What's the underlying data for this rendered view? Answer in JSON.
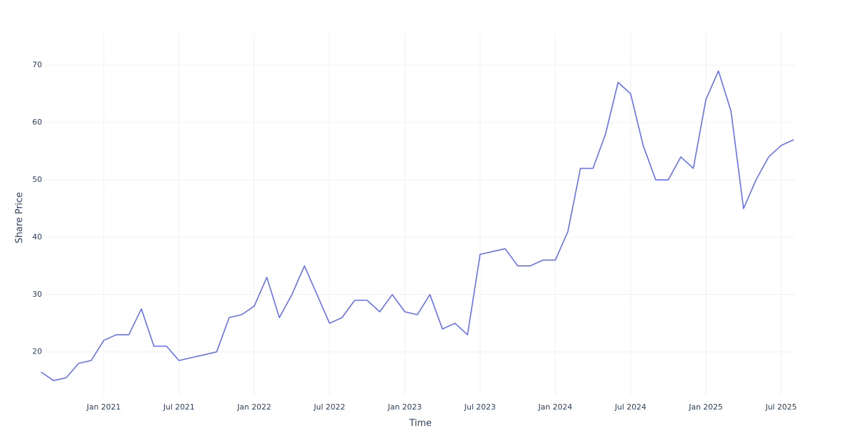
{
  "chart_data": {
    "type": "line",
    "x_label": "Time",
    "y_label": "Share Price",
    "x": [
      "2020-08",
      "2020-09",
      "2020-10",
      "2020-11",
      "2020-12",
      "2021-01",
      "2021-02",
      "2021-03",
      "2021-04",
      "2021-05",
      "2021-06",
      "2021-07",
      "2021-08",
      "2021-09",
      "2021-10",
      "2021-11",
      "2021-12",
      "2022-01",
      "2022-02",
      "2022-03",
      "2022-04",
      "2022-05",
      "2022-06",
      "2022-07",
      "2022-08",
      "2022-09",
      "2022-10",
      "2022-11",
      "2022-12",
      "2023-01",
      "2023-02",
      "2023-03",
      "2023-04",
      "2023-05",
      "2023-06",
      "2023-07",
      "2023-08",
      "2023-09",
      "2023-10",
      "2023-11",
      "2023-12",
      "2024-01",
      "2024-02",
      "2024-03",
      "2024-04",
      "2024-05",
      "2024-06",
      "2024-07",
      "2024-08",
      "2024-09",
      "2024-10",
      "2024-11",
      "2024-12",
      "2025-01",
      "2025-02",
      "2025-03",
      "2025-04",
      "2025-05",
      "2025-06",
      "2025-07",
      "2025-08"
    ],
    "series": [
      {
        "name": "Share Price",
        "color": "#636efa",
        "values": [
          16.5,
          15,
          15.5,
          18,
          18.5,
          22,
          23,
          23,
          27.5,
          21,
          21,
          18.5,
          19,
          19.5,
          20,
          26,
          26.5,
          28,
          33,
          26,
          30,
          35,
          30,
          25,
          26,
          29,
          29,
          27,
          30,
          27,
          26.5,
          30,
          24,
          25,
          23,
          37,
          37.5,
          38,
          35,
          35,
          36,
          36,
          41,
          52,
          52,
          58,
          67,
          65,
          56,
          50,
          50,
          54,
          52,
          64,
          69,
          62,
          45,
          50,
          54,
          56,
          57
        ]
      }
    ],
    "xlim": [
      "2020-08",
      "2025-08"
    ],
    "xticks": [
      {
        "value": "2021-01",
        "label": "Jan 2021"
      },
      {
        "value": "2021-07",
        "label": "Jul 2021"
      },
      {
        "value": "2022-01",
        "label": "Jan 2022"
      },
      {
        "value": "2022-07",
        "label": "Jul 2022"
      },
      {
        "value": "2023-01",
        "label": "Jan 2023"
      },
      {
        "value": "2023-07",
        "label": "Jul 2023"
      },
      {
        "value": "2024-01",
        "label": "Jan 2024"
      },
      {
        "value": "2024-07",
        "label": "Jul 2024"
      },
      {
        "value": "2025-01",
        "label": "Jan 2025"
      },
      {
        "value": "2025-07",
        "label": "Jul 2025"
      }
    ],
    "ylim": [
      12.4,
      75.5
    ],
    "yticks": [
      20,
      30,
      40,
      50,
      60,
      70
    ],
    "grid": true
  }
}
